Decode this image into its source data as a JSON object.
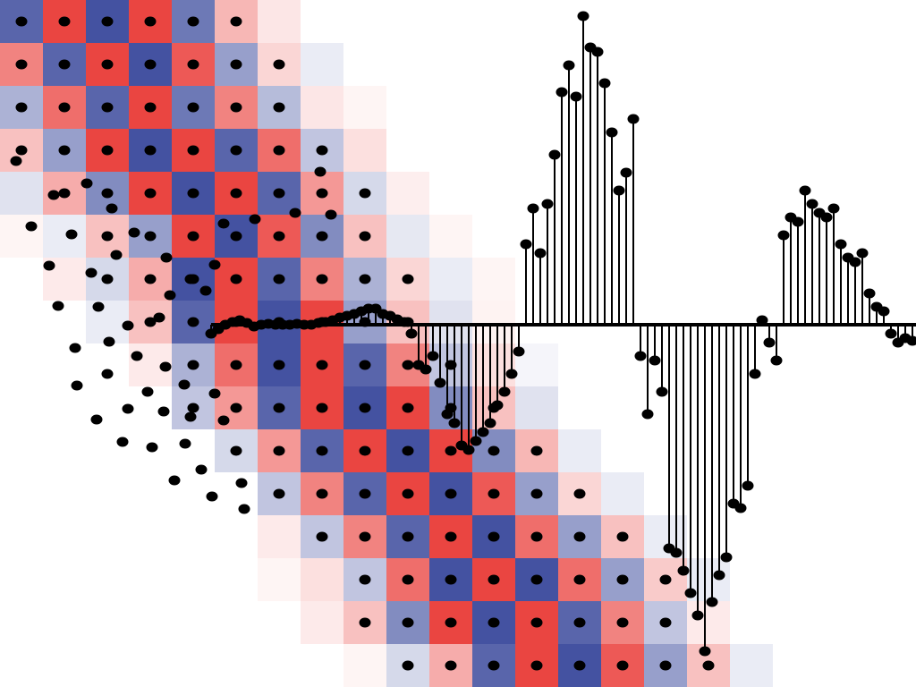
{
  "heatmap": {
    "cell": 48,
    "colors": {
      "negative": "#2f3f96",
      "positive": "#e8302c"
    },
    "rows": [
      {
        "start": 0,
        "values": [
          -0.8,
          0.9,
          -0.9,
          0.9,
          -0.7,
          0.35,
          0.12
        ]
      },
      {
        "start": 0,
        "values": [
          0.6,
          -0.8,
          0.9,
          -0.9,
          0.8,
          -0.5,
          0.2,
          -0.1
        ]
      },
      {
        "start": 0,
        "values": [
          -0.4,
          0.7,
          -0.8,
          0.9,
          -0.7,
          0.6,
          -0.35,
          0.12,
          0.05
        ]
      },
      {
        "start": 0,
        "values": [
          0.3,
          -0.5,
          0.9,
          -0.9,
          0.9,
          -0.8,
          0.7,
          -0.3,
          0.15
        ]
      },
      {
        "start": 0,
        "values": [
          -0.15,
          0.4,
          -0.6,
          0.9,
          -0.9,
          0.9,
          -0.8,
          0.5,
          -0.2,
          0.08
        ]
      },
      {
        "start": 0,
        "values": [
          0.05,
          -0.1,
          0.3,
          -0.5,
          0.9,
          -0.9,
          0.8,
          -0.6,
          0.3,
          -0.12,
          0.05
        ]
      },
      {
        "start": 1,
        "values": [
          0.1,
          -0.2,
          0.4,
          -0.9,
          0.9,
          -0.8,
          0.6,
          -0.4,
          0.2,
          -0.1,
          0.05
        ]
      },
      {
        "start": 2,
        "values": [
          -0.1,
          0.3,
          -0.8,
          0.9,
          -0.9,
          0.9,
          -0.5,
          0.3,
          -0.15,
          0.06
        ]
      },
      {
        "start": 3,
        "values": [
          0.1,
          -0.4,
          0.7,
          -0.9,
          0.9,
          -0.8,
          0.6,
          -0.3,
          0.15,
          -0.05
        ]
      },
      {
        "start": 4,
        "values": [
          -0.3,
          0.5,
          -0.8,
          0.9,
          -0.9,
          0.9,
          -0.6,
          0.3,
          -0.15
        ]
      },
      {
        "start": 5,
        "values": [
          -0.2,
          0.5,
          -0.8,
          0.9,
          -0.9,
          0.9,
          -0.6,
          0.35,
          -0.1
        ]
      },
      {
        "start": 6,
        "values": [
          -0.3,
          0.6,
          -0.8,
          0.9,
          -0.9,
          0.8,
          -0.5,
          0.2,
          -0.1
        ]
      },
      {
        "start": 6,
        "values": [
          0.1,
          -0.3,
          0.6,
          -0.8,
          0.9,
          -0.9,
          0.7,
          -0.5,
          0.3,
          -0.1
        ]
      },
      {
        "start": 6,
        "values": [
          0.05,
          0.15,
          -0.3,
          0.7,
          -0.9,
          0.9,
          -0.9,
          0.7,
          -0.5,
          0.25,
          -0.1
        ]
      },
      {
        "start": 7,
        "values": [
          0.1,
          0.3,
          -0.6,
          0.9,
          -0.9,
          0.9,
          -0.8,
          0.6,
          -0.3,
          0.1
        ]
      },
      {
        "start": 8,
        "values": [
          0.05,
          -0.2,
          0.4,
          -0.8,
          0.9,
          -0.9,
          0.8,
          -0.5,
          0.3,
          -0.1
        ]
      }
    ]
  },
  "stems": {
    "baseline": 363,
    "x0": 236,
    "step": 8,
    "values": [
      -10,
      -5,
      0,
      3,
      5,
      2,
      -2,
      0,
      1,
      0,
      0,
      0,
      1,
      0,
      0,
      2,
      3,
      5,
      8,
      10,
      12,
      15,
      18,
      18,
      12,
      10,
      6,
      3,
      -10,
      -45,
      -50,
      -35,
      -65,
      -100,
      -110,
      -135,
      -140,
      -130,
      -120,
      -110,
      -90,
      -75,
      -55,
      -30,
      90,
      130,
      80,
      135,
      190,
      260,
      290,
      255,
      345,
      310,
      305,
      270,
      215,
      150,
      170,
      230,
      -35,
      -100,
      -40,
      -75,
      -250,
      -255,
      -275,
      -300,
      -325,
      -365,
      -310,
      -280,
      -260,
      -200,
      -205,
      -180,
      -55,
      5,
      -20,
      -40,
      100,
      120,
      115,
      150,
      135,
      125,
      120,
      130,
      90,
      75,
      70,
      80,
      35,
      20,
      15,
      -10,
      -20,
      -15,
      -18
    ]
  },
  "scatter": {
    "x": [
      18,
      35,
      55,
      65,
      84,
      86,
      108,
      137,
      170,
      195,
      237,
      273,
      102,
      110,
      122,
      120,
      143,
      153,
      165,
      183,
      207,
      213,
      206,
      185,
      143,
      178,
      190,
      213,
      230,
      240,
      186,
      130,
      80,
      60,
      97,
      125,
      150,
      250,
      285,
      330,
      370,
      358,
      240,
      250,
      270,
      225
    ],
    "y": [
      180,
      253,
      297,
      342,
      389,
      431,
      469,
      494,
      500,
      537,
      555,
      569,
      305,
      343,
      382,
      418,
      457,
      398,
      438,
      460,
      496,
      466,
      430,
      410,
      364,
      355,
      330,
      312,
      325,
      296,
      288,
      285,
      262,
      218,
      205,
      233,
      260,
      250,
      245,
      238,
      240,
      192,
      440,
      470,
      540,
      525
    ]
  }
}
